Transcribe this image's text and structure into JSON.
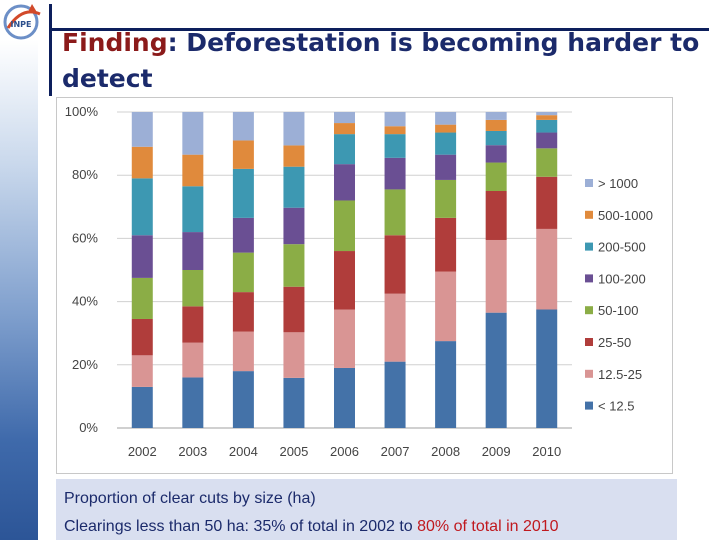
{
  "slide": {
    "title_highlight": "Finding",
    "title_rest": ": Deforestation is becoming harder to detect",
    "caption_line1": "Proportion of clear cuts by size (ha)",
    "caption_line2_prefix": "Clearings less than 50 ha:  35% of total in 2002 to ",
    "caption_line2_highlight": "80% of total in 2010",
    "logo_text": "INPE"
  },
  "colors": {
    "sidebar": "#3f6aab",
    "title": "#1b2a6b",
    "title_highlight": "#8b1a1a",
    "caption_highlight": "#c0191f"
  },
  "chart_data": {
    "type": "bar",
    "stacked": "percent",
    "title": "",
    "xlabel": "",
    "ylabel": "",
    "categories": [
      "2002",
      "2003",
      "2004",
      "2005",
      "2006",
      "2007",
      "2008",
      "2009",
      "2010"
    ],
    "y_ticks": [
      "0%",
      "20%",
      "40%",
      "60%",
      "80%",
      "100%"
    ],
    "ylim": [
      0,
      100
    ],
    "grid": true,
    "legend_position": "right",
    "series": [
      {
        "name": "< 12.5",
        "color": "#4472a8",
        "values": [
          13,
          16,
          18,
          16.5,
          19,
          21,
          27.5,
          36.5,
          37.5
        ]
      },
      {
        "name": "12.5-25",
        "color": "#d99594",
        "values": [
          10,
          11,
          12.5,
          15,
          18.5,
          21.5,
          22,
          23,
          25.5
        ]
      },
      {
        "name": "25-50",
        "color": "#b03d3b",
        "values": [
          11.5,
          11.5,
          12.5,
          15,
          18.5,
          18.5,
          17,
          15.5,
          16.5
        ]
      },
      {
        "name": "50-100",
        "color": "#8bad46",
        "values": [
          13,
          11.5,
          12.5,
          14,
          16,
          14.5,
          12,
          9,
          9
        ]
      },
      {
        "name": "100-200",
        "color": "#6a4f93",
        "values": [
          13.5,
          12,
          11,
          12,
          11.5,
          10,
          8,
          5.5,
          5
        ]
      },
      {
        "name": "200-500",
        "color": "#3d98b2",
        "values": [
          18,
          14.5,
          15.5,
          13.5,
          9.5,
          7.5,
          7,
          4.5,
          4
        ]
      },
      {
        "name": "500-1000",
        "color": "#e08a3c",
        "values": [
          10,
          10,
          9,
          7,
          3.5,
          2.5,
          2.5,
          3.5,
          1.5
        ]
      },
      {
        "name": "> 1000",
        "color": "#9cafd6",
        "values": [
          11,
          13.5,
          9,
          11,
          3.5,
          4.5,
          4,
          2.5,
          1
        ]
      }
    ]
  }
}
